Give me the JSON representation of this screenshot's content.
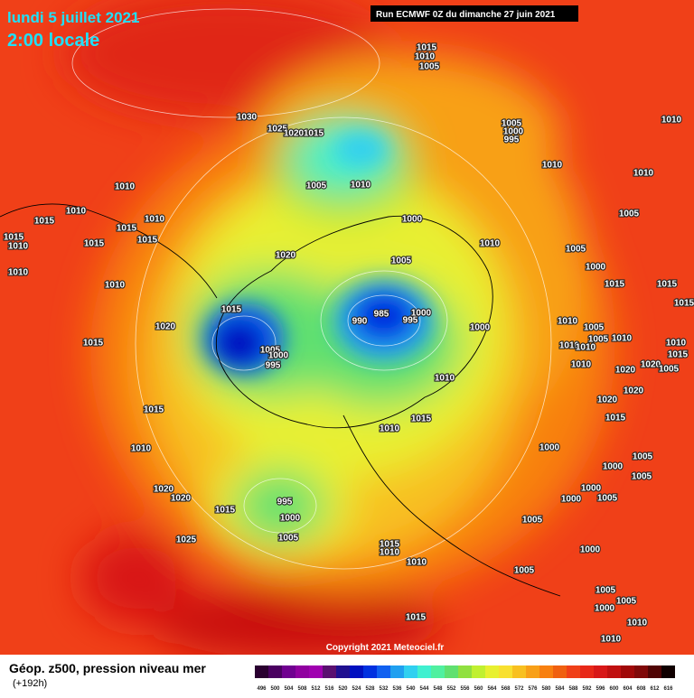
{
  "header": {
    "title": "lundi 5 juillet 2021",
    "subtitle": "2:00 locale",
    "run": "Run ECMWF 0Z du dimanche 27 juin 2021"
  },
  "map": {
    "isobar_labels": [
      1015,
      1010,
      1005,
      1030,
      1025,
      1020,
      1015,
      1005,
      1010,
      1005,
      1000,
      995,
      1010,
      1010,
      1010,
      1010,
      1010,
      1010,
      1015,
      1015,
      1015,
      1015,
      1015,
      1010,
      1010,
      1010,
      1000,
      1010,
      1005,
      1005,
      1000,
      1020,
      1005,
      1015,
      1020,
      1015,
      990,
      985,
      995,
      1000,
      1000,
      1015,
      1015,
      1015,
      1010,
      1005,
      1010,
      1010,
      1005,
      1010,
      1010,
      1015,
      1005,
      1000,
      995,
      1010,
      1010,
      1020,
      1020,
      1005,
      1020,
      1020,
      1015,
      1015,
      1010,
      1015,
      1010,
      1000,
      1005,
      1000,
      1005,
      1020,
      1020,
      995,
      1000,
      1015,
      1000,
      1000,
      1005,
      1005,
      1005,
      1025,
      1015,
      1010,
      1010,
      1000,
      1005,
      1005,
      1000,
      1005,
      1010,
      1015,
      1010
    ],
    "copyright": "Copyright 2021 Meteociel.fr"
  },
  "footer": {
    "caption": "Géop. z500, pression niveau mer",
    "lead": "(+192h)"
  },
  "colorbar": {
    "labels": [
      496,
      500,
      504,
      508,
      512,
      516,
      520,
      524,
      528,
      532,
      536,
      540,
      544,
      548,
      552,
      556,
      560,
      564,
      568,
      572,
      576,
      580,
      584,
      588,
      592,
      596,
      600,
      604,
      608,
      612,
      616
    ],
    "colors": [
      "#2a0030",
      "#4a0060",
      "#700090",
      "#9000a0",
      "#a000b0",
      "#5a1070",
      "#201090",
      "#0010c0",
      "#0030e0",
      "#1060f0",
      "#20a0f0",
      "#30d0f0",
      "#40f0d0",
      "#50f0a0",
      "#60e070",
      "#90e040",
      "#c0f030",
      "#e8f030",
      "#f8e030",
      "#f8c020",
      "#f8a018",
      "#f88010",
      "#f06010",
      "#f04018",
      "#e82818",
      "#d81818",
      "#c01010",
      "#a00808",
      "#800808",
      "#500404",
      "#100000"
    ]
  }
}
